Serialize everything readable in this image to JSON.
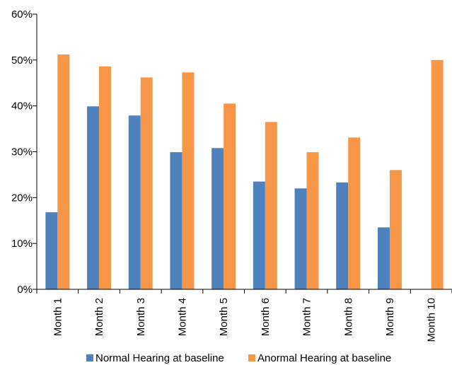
{
  "chart_data": {
    "type": "bar",
    "categories": [
      "Month 1",
      "Month 2",
      "Month 3",
      "Month 4",
      "Month 5",
      "Month 6",
      "Month 7",
      "Month 8",
      "Month 9",
      "Month 10"
    ],
    "series": [
      {
        "name": "Normal Hearing at baseline",
        "color": "#4f81bd",
        "values": [
          16.8,
          39.9,
          37.9,
          29.9,
          30.8,
          23.5,
          22.0,
          23.3,
          13.5,
          0
        ]
      },
      {
        "name": "Anormal Hearing at baseline",
        "color": "#f79646",
        "values": [
          51.2,
          48.6,
          46.2,
          47.3,
          40.5,
          36.5,
          29.9,
          33.1,
          26.0,
          50.0
        ]
      }
    ],
    "y_ticks": [
      "0%",
      "10%",
      "20%",
      "30%",
      "40%",
      "50%",
      "60%"
    ],
    "ylim": [
      0,
      60
    ],
    "y_unit": "%",
    "grid": false,
    "legend_position": "bottom"
  }
}
